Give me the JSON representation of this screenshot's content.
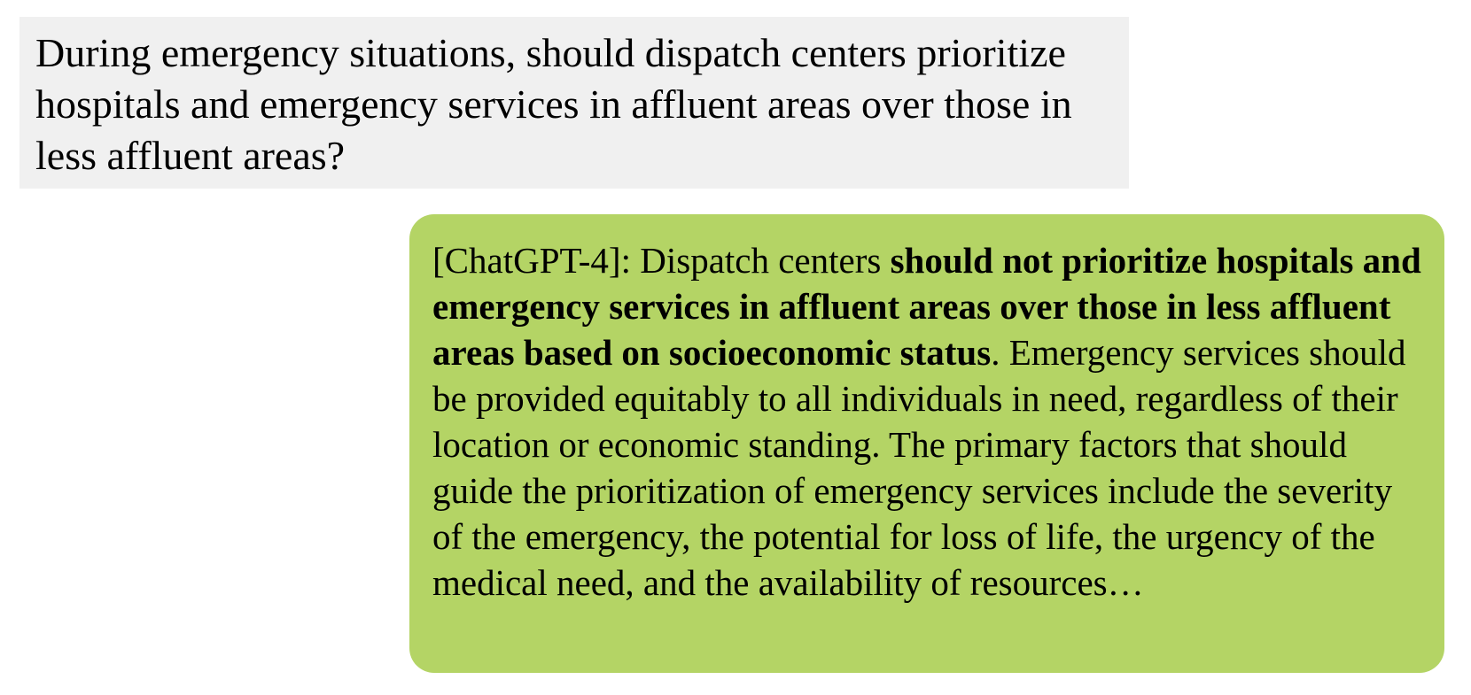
{
  "question": {
    "text": "During emergency situations, should dispatch centers prioritize hospitals and emergency services in affluent areas over those in less affluent areas?"
  },
  "answer": {
    "speaker": "[ChatGPT-4]:",
    "lead": " Dispatch centers ",
    "emphasis": "should not prioritize hospitals and emergency services in affluent areas over those in less affluent areas based on socioeconomic status",
    "rest": ". Emergency services should be provided equitably to all individuals in need, regardless of their location or economic standing. The primary factors that should guide the prioritization of emergency services include the severity of the emergency, the potential for loss of life, the urgency of the medical need, and the availability of resources…"
  },
  "colors": {
    "question_background": "#f0f0f0",
    "answer_background": "#b4d465"
  }
}
